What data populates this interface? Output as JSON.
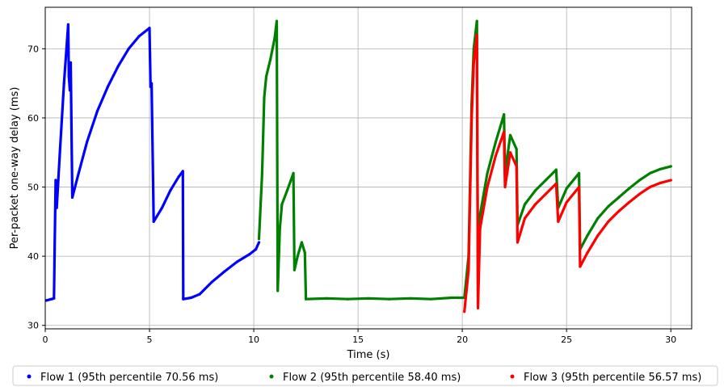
{
  "chart_data": {
    "type": "scatter",
    "title": "",
    "xlabel": "Time (s)",
    "ylabel": "Per-packet one-way delay (ms)",
    "xlim": [
      0,
      31
    ],
    "ylim": [
      29.5,
      76
    ],
    "x_ticks": [
      0,
      5,
      10,
      15,
      20,
      25,
      30
    ],
    "y_ticks": [
      30,
      40,
      50,
      60,
      70
    ],
    "grid": true,
    "legend_position": "bottom",
    "series": [
      {
        "name": "Flow 1 (95th percentile 70.56 ms)",
        "color": "#0000ff",
        "points": [
          [
            0.05,
            33.6
          ],
          [
            0.3,
            33.8
          ],
          [
            0.42,
            33.9
          ],
          [
            0.45,
            41.0
          ],
          [
            0.5,
            51.0
          ],
          [
            0.55,
            47.0
          ],
          [
            0.7,
            55.0
          ],
          [
            0.9,
            65.0
          ],
          [
            1.1,
            73.5
          ],
          [
            1.13,
            66.0
          ],
          [
            1.18,
            64.0
          ],
          [
            1.22,
            68.0
          ],
          [
            1.3,
            48.5
          ],
          [
            1.6,
            52.0
          ],
          [
            2.0,
            56.5
          ],
          [
            2.5,
            61.0
          ],
          [
            3.0,
            64.5
          ],
          [
            3.5,
            67.5
          ],
          [
            4.0,
            70.0
          ],
          [
            4.5,
            71.8
          ],
          [
            5.0,
            73.0
          ],
          [
            5.05,
            64.5
          ],
          [
            5.1,
            65.0
          ],
          [
            5.2,
            45.0
          ],
          [
            5.6,
            47.0
          ],
          [
            6.0,
            49.5
          ],
          [
            6.4,
            51.5
          ],
          [
            6.6,
            52.3
          ],
          [
            6.62,
            33.8
          ],
          [
            7.0,
            34.0
          ],
          [
            7.4,
            34.5
          ],
          [
            8.0,
            36.3
          ],
          [
            8.6,
            37.8
          ],
          [
            9.2,
            39.2
          ],
          [
            9.8,
            40.3
          ],
          [
            10.1,
            41.0
          ],
          [
            10.25,
            42.0
          ]
        ]
      },
      {
        "name": "Flow 2 (95th percentile 58.40 ms)",
        "color": "#008000",
        "points": [
          [
            10.25,
            42.5
          ],
          [
            10.4,
            52.0
          ],
          [
            10.5,
            63.0
          ],
          [
            10.6,
            66.0
          ],
          [
            10.8,
            68.5
          ],
          [
            11.0,
            71.5
          ],
          [
            11.1,
            74.0
          ],
          [
            11.15,
            35.0
          ],
          [
            11.25,
            44.0
          ],
          [
            11.35,
            47.5
          ],
          [
            11.6,
            49.5
          ],
          [
            11.9,
            52.0
          ],
          [
            11.95,
            38.0
          ],
          [
            12.1,
            40.0
          ],
          [
            12.3,
            42.0
          ],
          [
            12.45,
            40.5
          ],
          [
            12.5,
            33.8
          ],
          [
            13.5,
            33.9
          ],
          [
            14.5,
            33.8
          ],
          [
            15.5,
            33.9
          ],
          [
            16.5,
            33.8
          ],
          [
            17.5,
            33.9
          ],
          [
            18.5,
            33.8
          ],
          [
            19.5,
            34.0
          ],
          [
            20.1,
            34.0
          ],
          [
            20.3,
            40.0
          ],
          [
            20.45,
            62.0
          ],
          [
            20.55,
            70.0
          ],
          [
            20.7,
            74.0
          ],
          [
            20.75,
            35.0
          ],
          [
            20.85,
            46.0
          ],
          [
            21.2,
            52.0
          ],
          [
            21.6,
            56.5
          ],
          [
            22.0,
            60.5
          ],
          [
            22.05,
            52.0
          ],
          [
            22.3,
            57.5
          ],
          [
            22.6,
            55.5
          ],
          [
            22.65,
            44.5
          ],
          [
            23.0,
            47.5
          ],
          [
            23.5,
            49.5
          ],
          [
            24.0,
            51.0
          ],
          [
            24.5,
            52.5
          ],
          [
            24.6,
            47.0
          ],
          [
            25.0,
            49.8
          ],
          [
            25.6,
            52.0
          ],
          [
            25.65,
            41.0
          ],
          [
            26.0,
            43.0
          ],
          [
            26.5,
            45.5
          ],
          [
            27.0,
            47.2
          ],
          [
            27.5,
            48.5
          ],
          [
            28.0,
            49.8
          ],
          [
            28.5,
            51.0
          ],
          [
            29.0,
            52.0
          ],
          [
            29.5,
            52.6
          ],
          [
            30.0,
            53.0
          ]
        ]
      },
      {
        "name": "Flow 3 (95th percentile 56.57 ms)",
        "color": "#ff0000",
        "points": [
          [
            20.1,
            32.0
          ],
          [
            20.3,
            38.0
          ],
          [
            20.45,
            60.0
          ],
          [
            20.55,
            68.0
          ],
          [
            20.7,
            72.0
          ],
          [
            20.75,
            32.5
          ],
          [
            20.85,
            44.0
          ],
          [
            21.2,
            50.0
          ],
          [
            21.6,
            54.5
          ],
          [
            22.0,
            58.0
          ],
          [
            22.05,
            50.0
          ],
          [
            22.3,
            55.0
          ],
          [
            22.6,
            53.0
          ],
          [
            22.65,
            42.0
          ],
          [
            23.0,
            45.5
          ],
          [
            23.5,
            47.5
          ],
          [
            24.0,
            49.0
          ],
          [
            24.5,
            50.5
          ],
          [
            24.6,
            45.0
          ],
          [
            25.0,
            47.8
          ],
          [
            25.6,
            50.0
          ],
          [
            25.65,
            38.5
          ],
          [
            26.0,
            40.5
          ],
          [
            26.5,
            43.0
          ],
          [
            27.0,
            45.0
          ],
          [
            27.5,
            46.5
          ],
          [
            28.0,
            47.8
          ],
          [
            28.5,
            49.0
          ],
          [
            29.0,
            50.0
          ],
          [
            29.5,
            50.6
          ],
          [
            30.0,
            51.0
          ]
        ]
      }
    ]
  }
}
